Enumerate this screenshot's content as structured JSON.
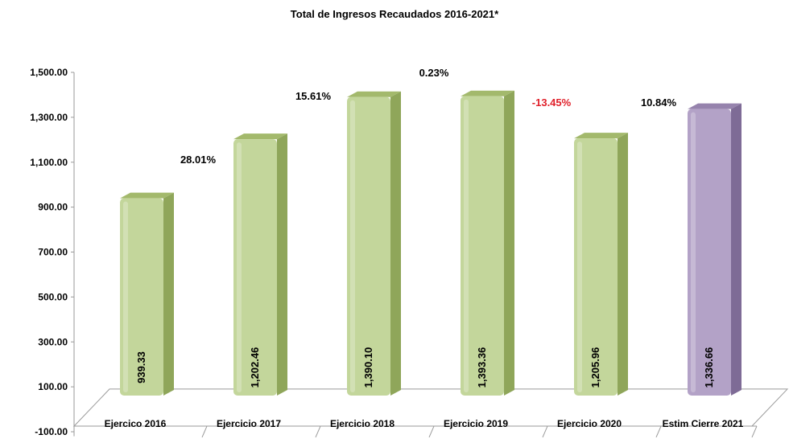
{
  "chart_data": {
    "type": "bar",
    "title": "Total de Ingresos Recaudados 2016-2021*",
    "xlabel": "",
    "ylabel": "",
    "categories": [
      "Ejercico 2016",
      "Ejercicio 2017",
      "Ejercicio 2018",
      "Ejercicio 2019",
      "Ejercicio 2020",
      "Estim Cierre 2021"
    ],
    "values": [
      939.33,
      1202.46,
      1390.1,
      1393.36,
      1205.96,
      1336.66
    ],
    "value_labels": [
      "939.33",
      "1,202.46",
      "1,390.10",
      "1,393.36",
      "1,205.96",
      "1,336.66"
    ],
    "growth_labels": [
      "",
      "28.01%",
      "15.61%",
      "0.23%",
      "-13.45%",
      "10.84%"
    ],
    "y_ticks": [
      -100,
      100,
      300,
      500,
      700,
      900,
      1100,
      1300,
      1500
    ],
    "y_tick_labels": [
      "-100.00",
      "100.00",
      "300.00",
      "500.00",
      "700.00",
      "900.00",
      "1,100.00",
      "1,300.00",
      "1,500.00"
    ],
    "ylim": [
      -100,
      1500
    ],
    "grid": false,
    "legend": "none",
    "colors": {
      "bar_green": "#c3d69b",
      "bar_green_side": "#8fa65a",
      "bar_green_top": "#a3b96c",
      "bar_purple": "#b3a2c7",
      "bar_purple_side": "#7e6b96",
      "bar_purple_top": "#9683ad",
      "growth_default": "#000000",
      "growth_negative": "#e0202a"
    }
  }
}
